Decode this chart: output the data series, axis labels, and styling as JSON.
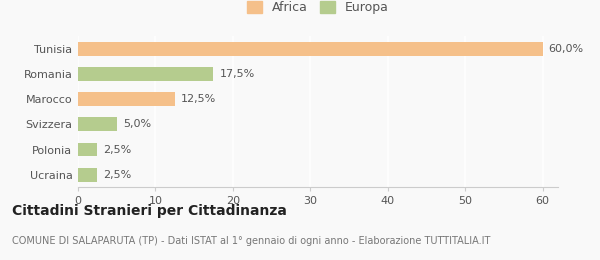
{
  "categories": [
    "Tunisia",
    "Romania",
    "Marocco",
    "Svizzera",
    "Polonia",
    "Ucraina"
  ],
  "values": [
    60.0,
    17.5,
    12.5,
    5.0,
    2.5,
    2.5
  ],
  "labels": [
    "60,0%",
    "17,5%",
    "12,5%",
    "5,0%",
    "2,5%",
    "2,5%"
  ],
  "colors": [
    "#f5c08a",
    "#b5cc8e",
    "#f5c08a",
    "#b5cc8e",
    "#b5cc8e",
    "#b5cc8e"
  ],
  "legend_africa_color": "#f5c08a",
  "legend_europa_color": "#b5cc8e",
  "xlim": [
    0,
    62
  ],
  "xticks": [
    0,
    10,
    20,
    30,
    40,
    50,
    60
  ],
  "title": "Cittadini Stranieri per Cittadinanza",
  "subtitle": "COMUNE DI SALAPARUTA (TP) - Dati ISTAT al 1° gennaio di ogni anno - Elaborazione TUTTITALIA.IT",
  "background_color": "#f9f9f9",
  "label_fontsize": 8,
  "tick_fontsize": 8,
  "title_fontsize": 10,
  "subtitle_fontsize": 7
}
